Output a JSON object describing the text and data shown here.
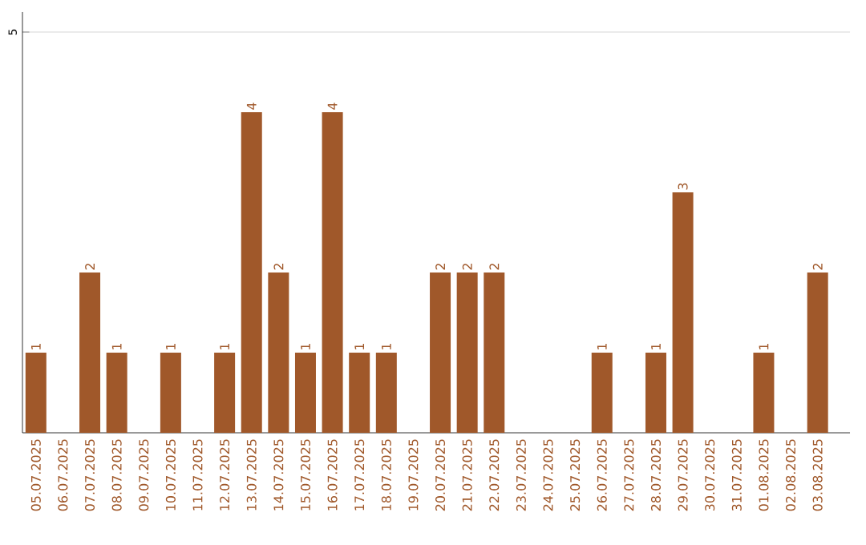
{
  "chart_data": {
    "type": "bar",
    "categories": [
      "05.07.2025",
      "06.07.2025",
      "07.07.2025",
      "08.07.2025",
      "09.07.2025",
      "10.07.2025",
      "11.07.2025",
      "12.07.2025",
      "13.07.2025",
      "14.07.2025",
      "15.07.2025",
      "16.07.2025",
      "17.07.2025",
      "18.07.2025",
      "19.07.2025",
      "20.07.2025",
      "21.07.2025",
      "22.07.2025",
      "23.07.2025",
      "24.07.2025",
      "25.07.2025",
      "26.07.2025",
      "27.07.2025",
      "28.07.2025",
      "29.07.2025",
      "30.07.2025",
      "31.07.2025",
      "01.08.2025",
      "02.08.2025",
      "03.08.2025"
    ],
    "values": [
      1,
      0,
      2,
      1,
      0,
      1,
      0,
      1,
      4,
      2,
      1,
      4,
      1,
      1,
      0,
      2,
      2,
      2,
      0,
      0,
      0,
      1,
      0,
      1,
      3,
      0,
      0,
      1,
      0,
      2
    ],
    "value_labels": [
      "1",
      null,
      "2",
      "1",
      null,
      "1",
      null,
      "1",
      "4",
      "2",
      "1",
      "4",
      "1",
      "1",
      null,
      "2",
      "2",
      "2",
      null,
      null,
      null,
      "1",
      null,
      "1",
      "3",
      null,
      null,
      "1",
      null,
      "2"
    ],
    "color": "#a0582a",
    "ylim": [
      0,
      5.25
    ],
    "yticks": [
      5
    ],
    "grid": "y"
  }
}
